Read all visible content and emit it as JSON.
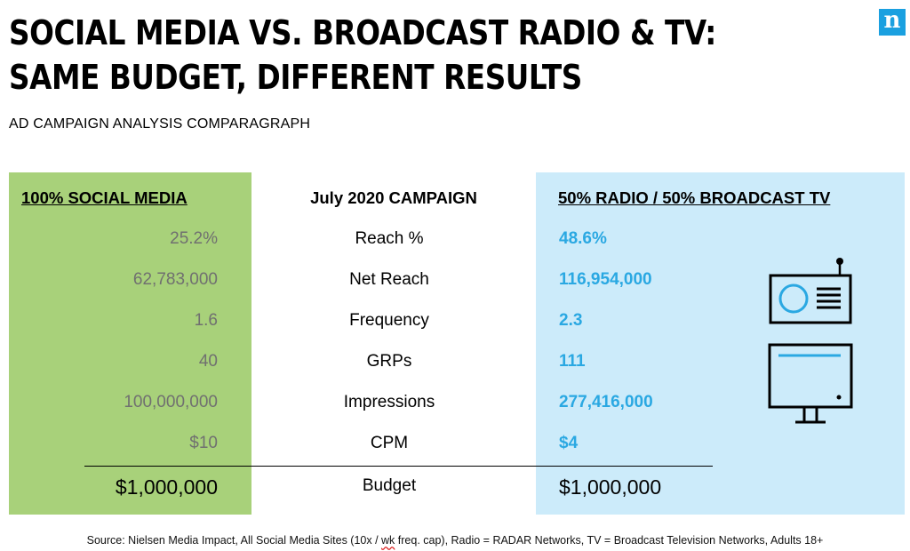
{
  "header": {
    "title_line1": "SOCIAL MEDIA VS. BROADCAST RADIO & TV:",
    "title_line2": "SAME BUDGET, DIFFERENT RESULTS",
    "subtitle": "AD CAMPAIGN ANALYSIS COMPARAGRAPH",
    "logo_letter": "n"
  },
  "colors": {
    "left_panel": "#a8d17a",
    "right_panel": "#ccebfa",
    "accent_blue": "#2aa8e2",
    "left_values": "#707070"
  },
  "icons": [
    "radio-icon",
    "tv-icon",
    "nielsen-logo-icon"
  ],
  "chart_data": {
    "type": "table",
    "columns": [
      "100% SOCIAL MEDIA",
      "July 2020 CAMPAIGN",
      "50% RADIO / 50% BROADCAST TV"
    ],
    "rows": [
      {
        "metric": "Reach %",
        "social": "25.2%",
        "broadcast": "48.6%"
      },
      {
        "metric": "Net Reach",
        "social": "62,783,000",
        "broadcast": "116,954,000"
      },
      {
        "metric": "Frequency",
        "social": "1.6",
        "broadcast": "2.3"
      },
      {
        "metric": "GRPs",
        "social": "40",
        "broadcast": "111"
      },
      {
        "metric": "Impressions",
        "social": "100,000,000",
        "broadcast": "277,416,000"
      },
      {
        "metric": "CPM",
        "social": "$10",
        "broadcast": "$4"
      }
    ],
    "total": {
      "metric": "Budget",
      "social": "$1,000,000",
      "broadcast": "$1,000,000"
    }
  },
  "footer": {
    "source_before": "Source: Nielsen Media Impact, All Social Media Sites (10x / ",
    "source_flag": "wk",
    "source_after": " freq. cap), Radio = RADAR Networks, TV = Broadcast Television Networks, Adults 18+"
  }
}
